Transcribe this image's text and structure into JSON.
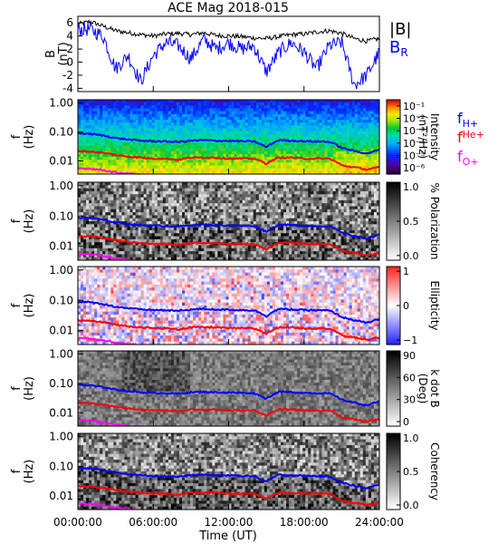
{
  "chart_data": {
    "type": "multi-panel",
    "title": "ACE Mag 2018-015",
    "xlabel": "Time (UT)",
    "x_ticks": [
      "00:00:00",
      "06:00:00",
      "12:00:00",
      "18:00:00",
      "24:00:00"
    ],
    "x_range_hours": [
      0,
      24
    ],
    "gyro_legend": [
      "fH+",
      "fHe+",
      "fO+"
    ],
    "gyro_colors": {
      "H+": "#0000ff",
      "He+": "#ff0000",
      "O+": "#ff00ff"
    },
    "gyro_freq_hz": {
      "H+": [
        0.09,
        0.086,
        0.075,
        0.062,
        0.055,
        0.05,
        0.048,
        0.047,
        0.045,
        0.05,
        0.052,
        0.05,
        0.049,
        0.048,
        0.047,
        0.03,
        0.052,
        0.05,
        0.048,
        0.047,
        0.046,
        0.028,
        0.022,
        0.018,
        0.024
      ],
      "He+": [
        0.022,
        0.021,
        0.019,
        0.016,
        0.014,
        0.013,
        0.012,
        0.012,
        0.011,
        0.013,
        0.013,
        0.013,
        0.012,
        0.012,
        0.012,
        0.008,
        0.013,
        0.013,
        0.012,
        0.012,
        0.012,
        0.007,
        0.006,
        0.005,
        0.006
      ],
      "O+": [
        0.0056,
        0.0054,
        0.0048,
        0.004,
        0.0036,
        0.0033,
        0.0031,
        0.003,
        0.0029,
        0.0032,
        0.0033,
        0.0032,
        0.0031,
        0.0031,
        0.003,
        0.002,
        0.0033,
        0.0032,
        0.0031,
        0.003,
        0.003,
        0.0018,
        0.0014,
        0.0012,
        0.0015
      ]
    },
    "panels": [
      {
        "kind": "line",
        "ylabel": "B",
        "yunit": "(nT)",
        "ylim": [
          -4.5,
          7
        ],
        "y_ticks": [
          "6",
          "4",
          "2",
          "0",
          "-2",
          "-4"
        ],
        "y_tick_values": [
          6,
          4,
          2,
          0,
          -2,
          -4
        ],
        "series": [
          {
            "name": "|B|",
            "color": "#000000",
            "x_hours": [
              0,
              1,
              2,
              3,
              4,
              5,
              6,
              7,
              8,
              9,
              10,
              11,
              12,
              13,
              14,
              15,
              16,
              17,
              18,
              19,
              20,
              21,
              22,
              23,
              24
            ],
            "values": [
              5.8,
              6.2,
              5.5,
              4.8,
              4.5,
              4.2,
              4.0,
              4.3,
              4.4,
              4.2,
              4.5,
              4.1,
              4.0,
              3.9,
              3.7,
              3.6,
              3.9,
              4.2,
              4.3,
              4.6,
              4.8,
              4.4,
              3.6,
              3.2,
              3.6
            ]
          },
          {
            "name": "BR",
            "color": "#0000ff",
            "x_hours": [
              0,
              1,
              2,
              3,
              4,
              5,
              6,
              7,
              8,
              9,
              10,
              11,
              12,
              13,
              14,
              15,
              16,
              17,
              18,
              19,
              20,
              21,
              22,
              23,
              24
            ],
            "values": [
              5.0,
              5.0,
              4.0,
              -1.0,
              1.0,
              -3.0,
              1.0,
              3.0,
              2.5,
              0.5,
              3.5,
              2.0,
              3.0,
              2.0,
              2.5,
              -1.5,
              1.5,
              3.0,
              1.5,
              -1.0,
              2.5,
              3.0,
              -3.5,
              -2.0,
              1.5
            ]
          }
        ]
      },
      {
        "kind": "spectrogram",
        "ylabel": "f",
        "yunit": "(Hz)",
        "y_ticks": [
          "1.00",
          "0.10",
          "0.01"
        ],
        "colorbar_label": "Intensity",
        "colorbar_unit": "(nT²/Hz)",
        "colorbar_ticks": [
          "10⁻¹",
          "10⁻²",
          "10⁻³",
          "10⁻⁴",
          "10⁻⁵",
          "10⁻⁶"
        ],
        "colorbar_range_log": [
          -6.5,
          -0.5
        ],
        "colormap": "rainbow"
      },
      {
        "kind": "spectrogram",
        "ylabel": "f",
        "yunit": "(Hz)",
        "y_ticks": [
          "1.00",
          "0.10",
          "0.01"
        ],
        "colorbar_label": "% Polarization",
        "colorbar_ticks": [
          "1.0",
          "0.5",
          "0.0"
        ],
        "colorbar_range": [
          0,
          1
        ],
        "colormap": "gray"
      },
      {
        "kind": "spectrogram",
        "ylabel": "f",
        "yunit": "(Hz)",
        "y_ticks": [
          "1.00",
          "0.10",
          "0.01"
        ],
        "colorbar_label": "Ellipticity",
        "colorbar_ticks": [
          "1",
          "0",
          "−1"
        ],
        "colorbar_range": [
          -1,
          1
        ],
        "colormap": "bluewhitered"
      },
      {
        "kind": "spectrogram",
        "ylabel": "f",
        "yunit": "(Hz)",
        "y_ticks": [
          "1.00",
          "0.10",
          "0.01"
        ],
        "colorbar_label": "k dot B",
        "colorbar_unit": "(Deg)",
        "colorbar_ticks": [
          "90",
          "60",
          "30",
          "0"
        ],
        "colorbar_range": [
          0,
          90
        ],
        "colormap": "gray"
      },
      {
        "kind": "spectrogram",
        "ylabel": "f",
        "yunit": "(Hz)",
        "y_ticks": [
          "1.00",
          "0.10",
          "0.01"
        ],
        "colorbar_label": "Coherency",
        "colorbar_ticks": [
          "1.0",
          "0.5",
          "0.0"
        ],
        "colorbar_range": [
          0,
          1
        ],
        "colormap": "gray"
      }
    ]
  }
}
